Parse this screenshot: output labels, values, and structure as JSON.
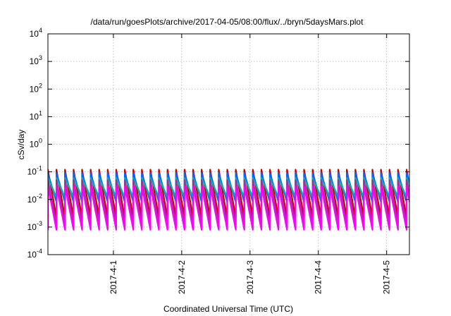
{
  "chart_data": {
    "type": "line",
    "title": "/data/run/goesPlots/archive/2017-04-05/08:00/flux/../bryn/5daysMars.plot",
    "xlabel": "Coordinated Universal Time (UTC)",
    "ylabel": "cSv/day",
    "y_scale": "log",
    "ylim": [
      0.0001,
      10000
    ],
    "y_ticks": [
      {
        "value": 0.0001,
        "base": "10",
        "exp": "-4"
      },
      {
        "value": 0.001,
        "base": "10",
        "exp": "-3"
      },
      {
        "value": 0.01,
        "base": "10",
        "exp": "-2"
      },
      {
        "value": 0.1,
        "base": "10",
        "exp": "-1"
      },
      {
        "value": 1,
        "base": "10",
        "exp": "0"
      },
      {
        "value": 10,
        "base": "10",
        "exp": "1"
      },
      {
        "value": 100,
        "base": "10",
        "exp": "2"
      },
      {
        "value": 1000,
        "base": "10",
        "exp": "3"
      },
      {
        "value": 10000,
        "base": "10",
        "exp": "4"
      }
    ],
    "xlim": [
      "2017-03-31 01:00",
      "2017-04-05 08:00"
    ],
    "x_ticks": [
      "2017-4-1",
      "2017-4-2",
      "2017-4-3",
      "2017-4-4",
      "2017-4-5"
    ],
    "grid": true,
    "cycle_hours": 3,
    "series": [
      {
        "color": "#cc0000",
        "peak": 0.12,
        "trough": 0.0022
      },
      {
        "color": "#0066ff",
        "peak": 0.09,
        "trough": 0.008
      },
      {
        "color": "#00b3b3",
        "peak": 0.06,
        "trough": 0.012
      },
      {
        "color": "#993399",
        "peak": 0.05,
        "trough": 0.0012
      },
      {
        "color": "#ff00ff",
        "peak": 0.03,
        "trough": 0.0008
      }
    ]
  }
}
